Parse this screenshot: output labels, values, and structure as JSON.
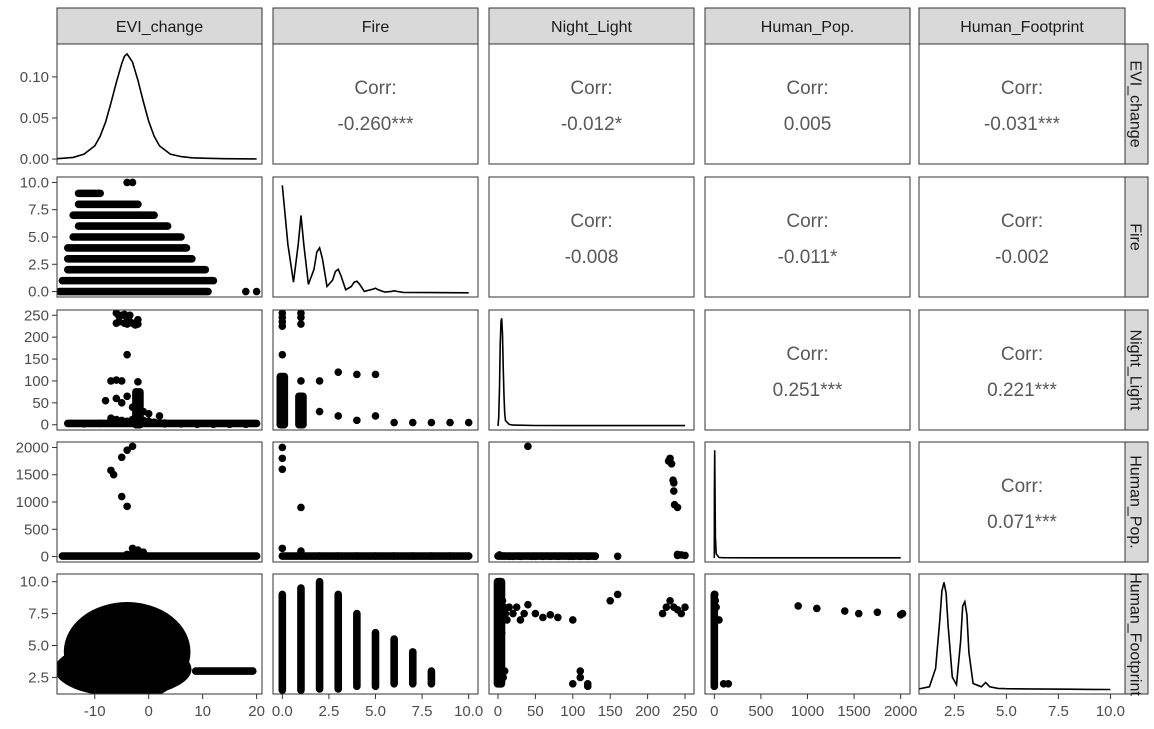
{
  "chart_data": {
    "type": "scatter-matrix",
    "variables": [
      "EVI_change",
      "Fire",
      "Night_Light",
      "Human_Pop.",
      "Human_Footprint"
    ],
    "row_strip_labels": [
      "EVI_change",
      "Fire",
      "Night_Light",
      "Human_Pop.",
      "Human_Footprint"
    ],
    "axis_ticks": [
      {
        "values": [
          -10,
          0,
          10,
          20
        ],
        "labels": [
          "-10",
          "0",
          "10",
          "20"
        ],
        "range": [
          -17,
          21
        ]
      },
      {
        "values": [
          0,
          2.5,
          5,
          7.5,
          10
        ],
        "labels": [
          "0.0",
          "2.5",
          "5.0",
          "7.5",
          "10.0"
        ],
        "range": [
          -0.5,
          10.5
        ]
      },
      {
        "values": [
          0,
          50,
          100,
          150,
          200,
          250
        ],
        "labels": [
          "0",
          "50",
          "100",
          "150",
          "200",
          "250"
        ],
        "range": [
          -12,
          262
        ]
      },
      {
        "values": [
          0,
          500,
          1000,
          1500,
          2000
        ],
        "labels": [
          "0",
          "500",
          "1000",
          "1500",
          "2000"
        ],
        "range": [
          -100,
          2100
        ]
      },
      {
        "values": [
          2.5,
          5,
          7.5,
          10
        ],
        "labels": [
          "2.5",
          "5.0",
          "7.5",
          "10.0"
        ],
        "range": [
          0.8,
          10.7
        ]
      }
    ],
    "row_axis_ticks": [
      {
        "values": [
          0,
          0.05,
          0.1
        ],
        "labels": [
          "0.00",
          "0.05",
          "0.10"
        ],
        "range": [
          -0.006,
          0.14
        ]
      },
      {
        "values": [
          0,
          2.5,
          5,
          7.5,
          10
        ],
        "labels": [
          "0.0",
          "2.5",
          "5.0",
          "7.5",
          "10.0"
        ],
        "range": [
          -0.5,
          10.5
        ]
      },
      {
        "values": [
          0,
          50,
          100,
          150,
          200,
          250
        ],
        "labels": [
          "0",
          "50",
          "100",
          "150",
          "200",
          "250"
        ],
        "range": [
          -12,
          262
        ]
      },
      {
        "values": [
          0,
          500,
          1000,
          1500,
          2000
        ],
        "labels": [
          "0",
          "500",
          "1000",
          "1500",
          "2000"
        ],
        "range": [
          -100,
          2100
        ]
      },
      {
        "values": [
          2.5,
          5,
          7.5,
          10
        ],
        "labels": [
          "2.5",
          "5.0",
          "7.5",
          "10.0"
        ],
        "range": [
          1.2,
          10.6
        ]
      }
    ],
    "correlations": [
      {
        "row": 0,
        "col": 1,
        "label": "Corr:",
        "value": "-0.260***"
      },
      {
        "row": 0,
        "col": 2,
        "label": "Corr:",
        "value": "-0.012*"
      },
      {
        "row": 0,
        "col": 3,
        "label": "Corr:",
        "value": "0.005"
      },
      {
        "row": 0,
        "col": 4,
        "label": "Corr:",
        "value": "-0.031***"
      },
      {
        "row": 1,
        "col": 2,
        "label": "Corr:",
        "value": "-0.008"
      },
      {
        "row": 1,
        "col": 3,
        "label": "Corr:",
        "value": "-0.011*"
      },
      {
        "row": 1,
        "col": 4,
        "label": "Corr:",
        "value": "-0.002"
      },
      {
        "row": 2,
        "col": 3,
        "label": "Corr:",
        "value": "0.251***"
      },
      {
        "row": 2,
        "col": 4,
        "label": "Corr:",
        "value": "0.221***"
      },
      {
        "row": 3,
        "col": 4,
        "label": "Corr:",
        "value": "0.071***"
      }
    ],
    "densities": [
      {
        "variable": "EVI_change",
        "x": [
          -17,
          -14,
          -12,
          -10,
          -9,
          -8,
          -7,
          -6,
          -5,
          -4.5,
          -4,
          -3,
          -2,
          -1,
          0,
          1,
          2,
          4,
          6,
          8,
          10,
          14,
          20
        ],
        "y": [
          0.0005,
          0.002,
          0.006,
          0.016,
          0.028,
          0.045,
          0.068,
          0.093,
          0.116,
          0.125,
          0.128,
          0.118,
          0.096,
          0.07,
          0.046,
          0.028,
          0.016,
          0.006,
          0.003,
          0.0015,
          0.001,
          0.0005,
          0.0002
        ]
      },
      {
        "variable": "Fire",
        "x": [
          0,
          0.3,
          0.6,
          0.85,
          1,
          1.15,
          1.4,
          1.7,
          1.85,
          2,
          2.15,
          2.4,
          2.7,
          2.85,
          3,
          3.15,
          3.4,
          3.7,
          3.85,
          4,
          4.15,
          4.4,
          4.85,
          5,
          5.15,
          5.5,
          5.85,
          6,
          6.15,
          6.5,
          7,
          8,
          9,
          10
        ],
        "y": [
          1.0,
          0.45,
          0.1,
          0.45,
          0.72,
          0.45,
          0.08,
          0.22,
          0.38,
          0.42,
          0.32,
          0.06,
          0.12,
          0.2,
          0.22,
          0.16,
          0.03,
          0.06,
          0.1,
          0.11,
          0.08,
          0.015,
          0.035,
          0.045,
          0.03,
          0.008,
          0.015,
          0.02,
          0.015,
          0.006,
          0.005,
          0.004,
          0.003,
          0.002
        ]
      },
      {
        "variable": "Night_Light",
        "x": [
          0,
          1,
          2,
          3,
          4,
          5,
          6,
          7,
          8,
          9,
          10,
          15,
          20,
          50,
          100,
          150,
          200,
          250
        ],
        "y": [
          0.0,
          0.08,
          0.35,
          0.75,
          0.97,
          1.0,
          0.85,
          0.55,
          0.28,
          0.12,
          0.05,
          0.015,
          0.008,
          0.005,
          0.004,
          0.004,
          0.004,
          0.004
        ]
      },
      {
        "variable": "Human_Pop.",
        "x": [
          0,
          1,
          4,
          8,
          12,
          20,
          50,
          100,
          500,
          1000,
          1500,
          2000
        ],
        "y": [
          0.0,
          0.6,
          1.0,
          0.55,
          0.2,
          0.04,
          0.005,
          0.003,
          0.002,
          0.002,
          0.002,
          0.002
        ]
      },
      {
        "variable": "Human_Footprint",
        "x": [
          0.8,
          1.3,
          1.6,
          1.8,
          1.9,
          2,
          2.1,
          2.2,
          2.4,
          2.6,
          2.8,
          2.9,
          3,
          3.1,
          3.2,
          3.4,
          3.8,
          4,
          4.2,
          4.6,
          5,
          6,
          7,
          8,
          9,
          10
        ],
        "y": [
          0.01,
          0.03,
          0.2,
          0.65,
          0.92,
          1.0,
          0.9,
          0.6,
          0.12,
          0.05,
          0.45,
          0.78,
          0.82,
          0.7,
          0.35,
          0.06,
          0.03,
          0.07,
          0.03,
          0.015,
          0.012,
          0.01,
          0.008,
          0.007,
          0.006,
          0.005
        ]
      }
    ],
    "scatter_bands": [
      {
        "row": 1,
        "col": 0,
        "bands": [
          {
            "y": 0,
            "x": [
              -16.5,
              11
            ]
          },
          {
            "y": 1,
            "x": [
              -16,
              12
            ]
          },
          {
            "y": 2,
            "x": [
              -15,
              10.5
            ]
          },
          {
            "y": 3,
            "x": [
              -15,
              8
            ]
          },
          {
            "y": 4,
            "x": [
              -15,
              7
            ]
          },
          {
            "y": 5,
            "x": [
              -14,
              6
            ]
          },
          {
            "y": 6,
            "x": [
              -13,
              3.5
            ]
          },
          {
            "y": 7,
            "x": [
              -14,
              1
            ]
          },
          {
            "y": 8,
            "x": [
              -13,
              -2
            ]
          },
          {
            "y": 9,
            "x": [
              -13,
              -9
            ]
          }
        ]
      },
      {
        "row": 4,
        "col": 1,
        "bands": [
          {
            "x": 0,
            "y": [
              1.5,
              9
            ]
          },
          {
            "x": 1,
            "y": [
              1.5,
              9.5
            ]
          },
          {
            "x": 2,
            "y": [
              1.6,
              10
            ]
          },
          {
            "x": 3,
            "y": [
              1.6,
              9
            ]
          },
          {
            "x": 4,
            "y": [
              1.8,
              7.5
            ]
          },
          {
            "x": 5,
            "y": [
              1.8,
              6
            ]
          },
          {
            "x": 6,
            "y": [
              2,
              5.5
            ]
          },
          {
            "x": 7,
            "y": [
              2,
              4.5
            ]
          },
          {
            "x": 8,
            "y": [
              2,
              3
            ]
          }
        ]
      },
      {
        "row": 4,
        "col": 3,
        "bands": [
          {
            "x": 0,
            "y": [
              1.8,
              9
            ]
          }
        ]
      }
    ],
    "scatter_points": [
      {
        "row": 1,
        "col": 0,
        "x": [
          -4,
          -3,
          18,
          20
        ],
        "y": [
          10,
          10,
          0,
          0
        ]
      },
      {
        "row": 2,
        "col": 0,
        "x": [
          -6,
          -5.5,
          -5,
          -4.5,
          -4,
          -3.5,
          -2,
          -6,
          -5.5,
          -4.5,
          -4,
          -3.5,
          -3,
          -2.5,
          -2,
          -7,
          -6,
          -5,
          -2,
          -4,
          -8,
          -6,
          -5,
          -4,
          -3,
          -2,
          -1,
          0,
          2,
          -7,
          -6,
          -5,
          -4,
          -3,
          -2,
          -1,
          0,
          1,
          2,
          3,
          -12,
          -9,
          -6,
          -3,
          0,
          3,
          6,
          9,
          12,
          15,
          18
        ],
        "y": [
          255,
          248,
          250,
          252,
          245,
          250,
          240,
          232,
          235,
          232,
          230,
          235,
          232,
          228,
          230,
          100,
          102,
          100,
          98,
          160,
          55,
          60,
          50,
          65,
          40,
          45,
          30,
          25,
          20,
          15,
          12,
          10,
          8,
          12,
          15,
          10,
          8,
          6,
          5,
          4,
          2,
          3,
          5,
          4,
          3,
          2,
          2,
          1,
          1,
          1,
          1
        ]
      },
      {
        "row": 3,
        "col": 0,
        "x": [
          -4,
          -3,
          -5,
          -7,
          -6.5,
          -5,
          -4,
          -3,
          -2,
          -1,
          -3,
          -4
        ],
        "y": [
          1950,
          2020,
          1820,
          1580,
          1500,
          1100,
          920,
          150,
          120,
          80,
          60,
          40
        ]
      },
      {
        "row": 2,
        "col": 1,
        "x": [
          0,
          0,
          0,
          0,
          0,
          0,
          0,
          0,
          0,
          1,
          1,
          1,
          1,
          1,
          1,
          2,
          2,
          3,
          3,
          4,
          4,
          5,
          5,
          6,
          7,
          8,
          9,
          10
        ],
        "y": [
          255,
          245,
          235,
          225,
          160,
          100,
          60,
          30,
          10,
          255,
          245,
          230,
          100,
          60,
          30,
          100,
          30,
          120,
          20,
          115,
          10,
          115,
          20,
          5,
          5,
          5,
          5,
          5
        ]
      },
      {
        "row": 3,
        "col": 1,
        "x": [
          0,
          0,
          0,
          0,
          1,
          1,
          2,
          3,
          4,
          5,
          6,
          7,
          8,
          9,
          10
        ],
        "y": [
          2000,
          1800,
          1600,
          150,
          900,
          100,
          10,
          10,
          10,
          10,
          10,
          10,
          10,
          10,
          10
        ]
      },
      {
        "row": 3,
        "col": 2,
        "x": [
          2,
          8,
          15,
          20,
          30,
          40,
          45,
          50,
          60,
          70,
          80,
          95,
          100,
          110,
          120,
          130,
          160,
          230,
          232,
          234,
          235,
          236,
          240,
          245,
          250,
          228,
          235,
          240,
          240
        ],
        "y": [
          30,
          10,
          5,
          5,
          5,
          2020,
          5,
          5,
          5,
          5,
          5,
          5,
          5,
          5,
          5,
          5,
          5,
          1800,
          1700,
          1400,
          1200,
          950,
          40,
          30,
          20,
          1750,
          1350,
          900,
          20
        ]
      },
      {
        "row": 4,
        "col": 2,
        "x": [
          0,
          2,
          4,
          6,
          8,
          10,
          5,
          3,
          1,
          12,
          15,
          20,
          25,
          30,
          35,
          40,
          50,
          60,
          70,
          80,
          100,
          110,
          120,
          150,
          160,
          220,
          225,
          230,
          235,
          240,
          245,
          250,
          100,
          110,
          120,
          3,
          7,
          9
        ],
        "y": [
          9.5,
          10,
          9,
          8.5,
          8,
          7.5,
          6,
          5,
          4,
          7,
          8,
          7.5,
          8,
          7,
          7.5,
          8.2,
          7.5,
          7.2,
          7.4,
          7.2,
          7,
          3,
          2,
          8.5,
          9,
          7.5,
          8,
          8.5,
          8,
          7.8,
          7.5,
          8,
          2,
          2.5,
          1.8,
          2,
          2.5,
          3
        ]
      },
      {
        "row": 4,
        "col": 3,
        "x": [
          5,
          10,
          20,
          50,
          100,
          150,
          900,
          1100,
          1400,
          1550,
          1750,
          2000,
          2020
        ],
        "y": [
          9,
          8.5,
          8,
          7,
          2,
          2,
          8.1,
          7.9,
          7.7,
          7.5,
          7.6,
          7.4,
          7.5
        ]
      }
    ],
    "scatter_blob": {
      "row": 4,
      "col": 0,
      "center_x": -4,
      "center_y": 4.5,
      "x_span": [
        -16,
        11
      ],
      "y_span": [
        1.8,
        10
      ],
      "tail": {
        "y": 3,
        "x": [
          8,
          20
        ]
      }
    },
    "vertical_clusters": [
      {
        "row": 2,
        "col": 0,
        "x": -2,
        "y": [
          0,
          75
        ]
      },
      {
        "row": 4,
        "col": 2,
        "x": 2,
        "y": [
          2,
          10
        ]
      },
      {
        "row": 2,
        "col": 1,
        "x": 0,
        "y": [
          0,
          110
        ]
      },
      {
        "row": 2,
        "col": 1,
        "x": 1,
        "y": [
          0,
          65
        ]
      }
    ]
  }
}
